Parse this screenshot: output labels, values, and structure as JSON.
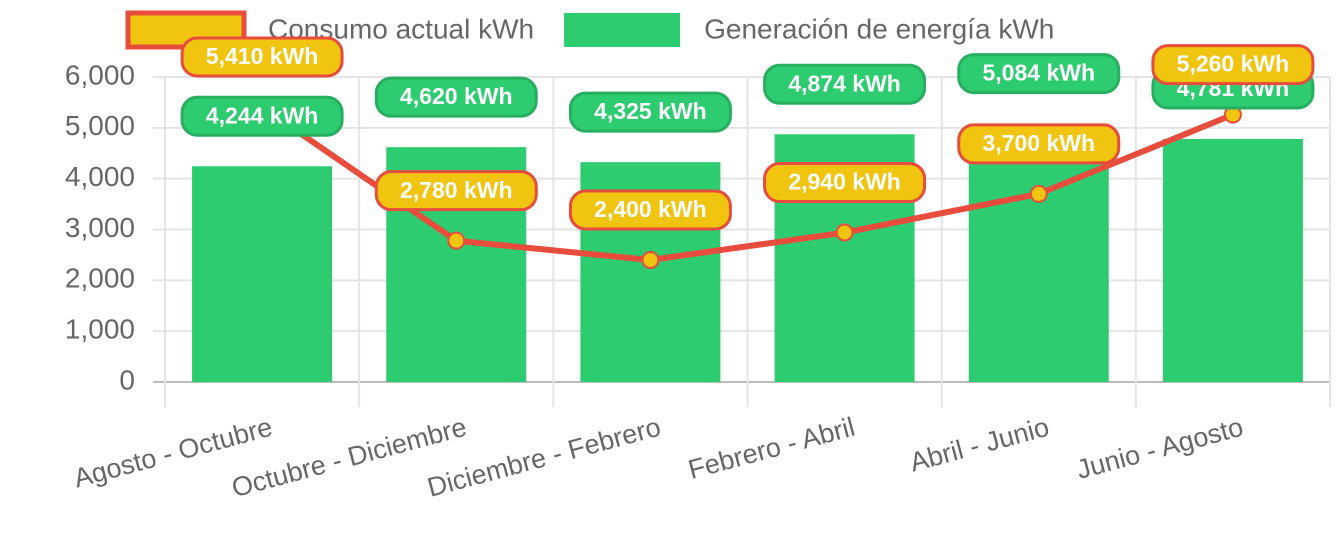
{
  "chart_data": {
    "type": "bar",
    "categories": [
      "Agosto - Octubre",
      "Octubre - Diciembre",
      "Diciembre - Febrero",
      "Febrero - Abril",
      "Abril - Junio",
      "Junio - Agosto"
    ],
    "series": [
      {
        "name": "Consumo actual kWh",
        "type": "line",
        "color": "#e74c3c",
        "fill": "#f1c40f",
        "values": [
          5410,
          2780,
          2400,
          2940,
          3700,
          5260
        ],
        "value_labels": [
          "5,410 kWh",
          "2,780 kWh",
          "2,400 kWh",
          "2,940 kWh",
          "3,700 kWh",
          "5,260 kWh"
        ]
      },
      {
        "name": "Generación de energía kWh",
        "type": "bar",
        "color": "#2ecc71",
        "border": "#27ae60",
        "values": [
          4244,
          4620,
          4325,
          4874,
          5084,
          4781
        ],
        "value_labels": [
          "4,244 kWh",
          "4,620 kWh",
          "4,325 kWh",
          "4,874 kWh",
          "5,084 kWh",
          "4,781 kWh"
        ]
      }
    ],
    "ylim": [
      0,
      6000
    ],
    "yticks": [
      0,
      {
        "value": 1000,
        "label": "1,000"
      },
      {
        "value": 2000,
        "label": "2,000"
      },
      {
        "value": 3000,
        "label": "3,000"
      },
      {
        "value": 4000,
        "label": "4,000"
      },
      {
        "value": 5000,
        "label": "5,000"
      },
      {
        "value": 6000,
        "label": "6,000"
      }
    ],
    "grid": true,
    "legend": "top"
  }
}
